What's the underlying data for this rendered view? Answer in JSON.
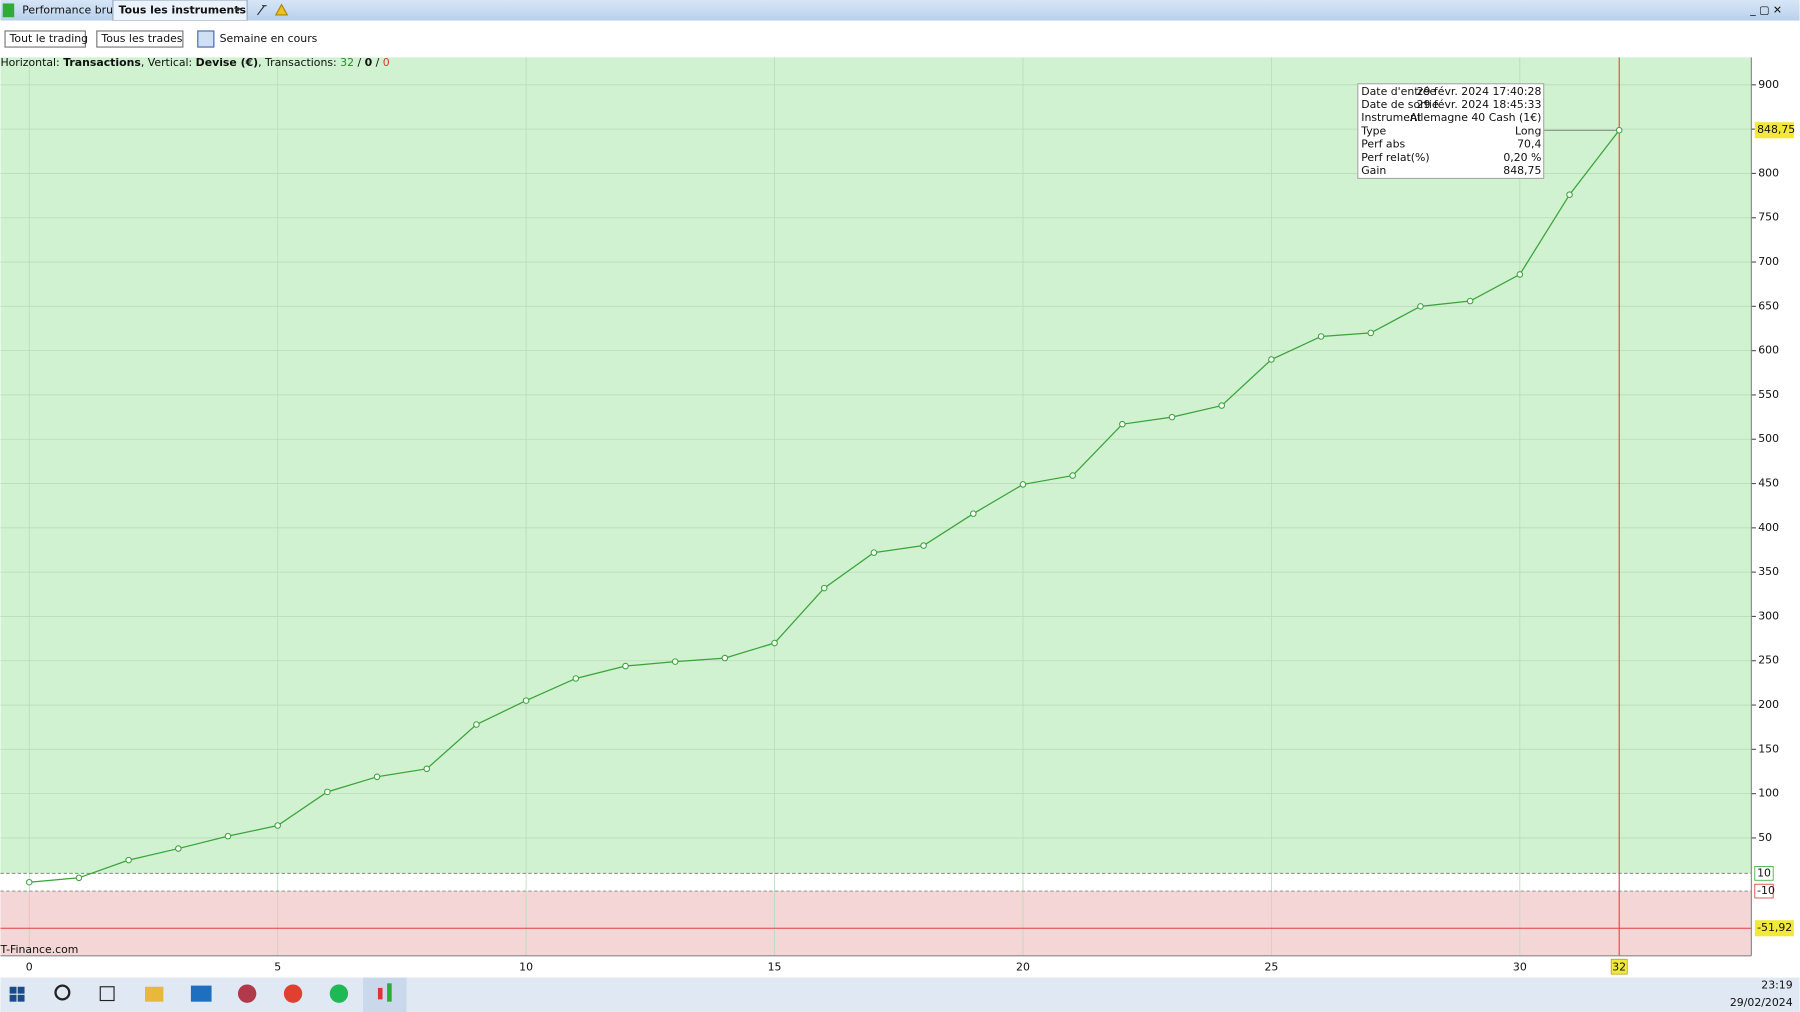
{
  "toolbar": {
    "tabs": [
      "Performance brute",
      "Tous les instruments"
    ],
    "filters": [
      "Tout le trading",
      "Tous les trades"
    ],
    "period": "Semaine en cours"
  },
  "chart_data": {
    "type": "line",
    "info": [
      "Horizontal: ",
      "Transactions",
      ", Vertical: ",
      "Devise (€)",
      ", Transactions: ",
      "32",
      " / ",
      "0",
      " / ",
      "0"
    ],
    "x": [
      0,
      1,
      2,
      3,
      4,
      5,
      6,
      7,
      8,
      9,
      10,
      11,
      12,
      13,
      14,
      15,
      16,
      17,
      18,
      19,
      20,
      21,
      22,
      23,
      24,
      25,
      26,
      27,
      28,
      29,
      30,
      31,
      32
    ],
    "series": [
      {
        "color": "#3aa33a",
        "values": [
          0,
          5,
          25,
          38,
          52,
          64,
          102,
          119,
          128,
          178,
          205,
          230,
          244,
          249,
          253,
          270,
          332,
          372,
          380,
          416,
          449,
          459,
          517,
          525,
          538,
          590,
          616,
          620,
          650,
          656,
          686,
          776,
          848.75
        ]
      }
    ],
    "xlim": [
      -0.58,
      34.66
    ],
    "ylim": [
      -83,
      931
    ],
    "xticks": [
      0,
      5,
      10,
      15,
      20,
      25,
      30
    ],
    "yticks": [
      50,
      100,
      150,
      200,
      250,
      300,
      350,
      400,
      450,
      500,
      550,
      600,
      650,
      700,
      750,
      800,
      850,
      900
    ],
    "grid": true,
    "zones": [
      {
        "value": 10,
        "label": "10"
      },
      {
        "value": -10,
        "label": "-10"
      }
    ],
    "drawdown": {
      "value": -51.92,
      "label": "-51,92"
    },
    "cursor_x": 32,
    "cursor_value": {
      "value": 848.75,
      "label": "848,75"
    },
    "tooltip": [
      [
        "Date d'entrée",
        "29 févr. 2024 17:40:28"
      ],
      [
        "Date de sortie",
        "29 févr. 2024 18:45:33"
      ],
      [
        "Instrument",
        "Allemagne 40 Cash (1€)"
      ],
      [
        "Type",
        "Long"
      ],
      [
        "Perf abs",
        "70,4"
      ],
      [
        "Perf relat(%)",
        "0,20 %"
      ],
      [
        "Gain",
        "848,75"
      ]
    ],
    "watermark": "T-Finance.com"
  },
  "taskbar": {
    "time": "23:19",
    "date": "29/02/2024"
  }
}
